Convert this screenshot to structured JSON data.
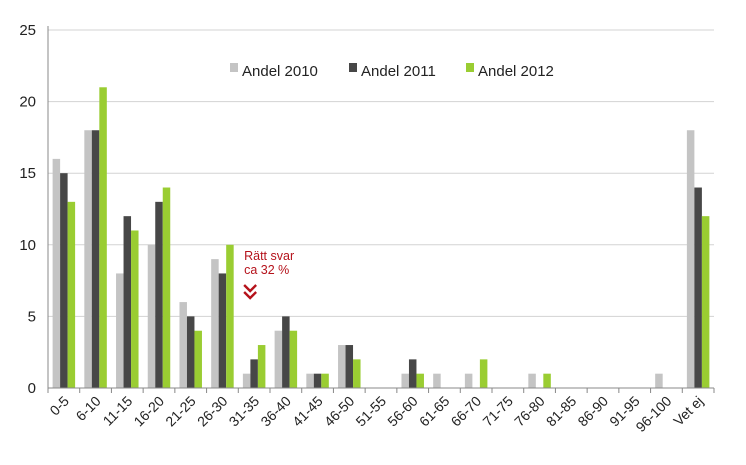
{
  "chart_data": {
    "type": "bar",
    "title": "",
    "xlabel": "",
    "ylabel": "",
    "ylim": [
      0,
      25
    ],
    "yticks": [
      0,
      5,
      10,
      15,
      20,
      25
    ],
    "grid": true,
    "legend_position": "top-center",
    "categories": [
      "0-5",
      "6-10",
      "11-15",
      "16-20",
      "21-25",
      "26-30",
      "31-35",
      "36-40",
      "41-45",
      "46-50",
      "51-55",
      "56-60",
      "61-65",
      "66-70",
      "71-75",
      "76-80",
      "81-85",
      "86-90",
      "91-95",
      "96-100",
      "Vet ej"
    ],
    "series": [
      {
        "name": "Andel 2010",
        "color": "#c4c4c4",
        "values": [
          16,
          18,
          8,
          10,
          6,
          9,
          1,
          4,
          1,
          3,
          0,
          1,
          1,
          1,
          0,
          1,
          0,
          0,
          0,
          1,
          18
        ]
      },
      {
        "name": "Andel 2011",
        "color": "#474747",
        "values": [
          15,
          18,
          12,
          13,
          5,
          8,
          2,
          5,
          1,
          3,
          0,
          2,
          0,
          0,
          0,
          0,
          0,
          0,
          0,
          0,
          14
        ]
      },
      {
        "name": "Andel 2012",
        "color": "#9acd32",
        "values": [
          13,
          21,
          11,
          14,
          4,
          10,
          3,
          4,
          1,
          2,
          0,
          1,
          0,
          2,
          0,
          1,
          0,
          0,
          0,
          0,
          12
        ]
      }
    ],
    "annotation": {
      "lines": [
        "Rätt svar",
        "ca 32 %"
      ],
      "category": "31-35",
      "color": "#b5121b"
    }
  }
}
